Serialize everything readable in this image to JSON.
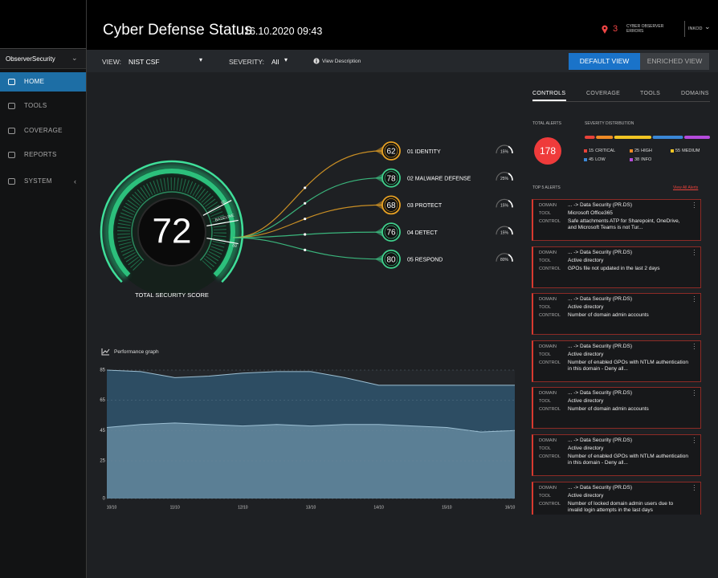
{
  "header": {
    "title": "Cyber Defense Status",
    "datetime": "16.10.2020 09:43",
    "errors_count": "3",
    "errors_label": "CYBER OBSERVER ERRORS",
    "user": "INKOD"
  },
  "sidebar": {
    "org": "ObserverSecurity",
    "nav": [
      "HOME",
      "TOOLS",
      "COVERAGE",
      "REPORTS",
      "SYSTEM"
    ]
  },
  "toolbar": {
    "view_label": "VIEW:",
    "view_value": "NIST CSF",
    "severity_label": "SEVERITY:",
    "severity_value": "All",
    "view_description": "View Description",
    "buttons": [
      "DEFAULT VIEW",
      "ENRICHED VIEW"
    ]
  },
  "gauge": {
    "score": "72",
    "label": "TOTAL SECURITY SCORE",
    "marks": [
      "65",
      "BASELINE",
      "80"
    ]
  },
  "functions": [
    {
      "score": "62",
      "name": "01 IDENTITY",
      "pct": "15%",
      "color": "#e8a224"
    },
    {
      "score": "78",
      "name": "02 MALWARE DEFENSE",
      "pct": "25%",
      "color": "#3fd08c"
    },
    {
      "score": "68",
      "name": "03 PROTECT",
      "pct": "15%",
      "color": "#e8a224"
    },
    {
      "score": "76",
      "name": "04 DETECT",
      "pct": "15%",
      "color": "#3fd08c"
    },
    {
      "score": "80",
      "name": "05 RESPOND",
      "pct": "80%",
      "color": "#3fd08c"
    }
  ],
  "tabs": [
    "CONTROLS",
    "COVERAGE",
    "TOOLS",
    "DOMAINS"
  ],
  "alerts": {
    "total_label": "TOTAL ALERTS",
    "total": "178",
    "distribution_label": "SEVERITY DISTRIBUTION",
    "severity": [
      {
        "count": 15,
        "name": "CRITICAL",
        "color": "#e8423a"
      },
      {
        "count": 25,
        "name": "HIGH",
        "color": "#ef8a25"
      },
      {
        "count": 55,
        "name": "MEDIUM",
        "color": "#f2c523"
      },
      {
        "count": 45,
        "name": "LOW",
        "color": "#3a87d6"
      },
      {
        "count": 38,
        "name": "INFO",
        "color": "#b54bdc"
      }
    ],
    "top_label": "TOP 5 ALERTS",
    "view_all": "View All Alerts",
    "field_labels": {
      "domain": "DOMAIN",
      "tool": "TOOL",
      "control": "CONTROL"
    },
    "cards": [
      {
        "domain": "... -> Data Security (PR.DS)",
        "tool": "Microsoft Office365",
        "control": "Safe attachments ATP for Sharepoint, OneDrive, and Microsoft Teams is not Tur..."
      },
      {
        "domain": "... -> Data Security (PR.DS)",
        "tool": "Active directory",
        "control": "GPOs file not updated in the last 2 days"
      },
      {
        "domain": "... -> Data Security (PR.DS)",
        "tool": "Active directory",
        "control": "Number of domain admin accounts"
      },
      {
        "domain": "... -> Data Security (PR.DS)",
        "tool": "Active directory",
        "control": "Number of enabled GPOs with NTLM authentication in this domain - Deny all..."
      },
      {
        "domain": "... -> Data Security (PR.DS)",
        "tool": "Active directory",
        "control": "Number of domain admin accounts"
      },
      {
        "domain": "... -> Data Security (PR.DS)",
        "tool": "Active directory",
        "control": "Number of enabled GPOs with NTLM authentication in this domain - Deny all..."
      },
      {
        "domain": "... -> Data Security (PR.DS)",
        "tool": "Active directory",
        "control": "Number of locked domain admin users due to invalid login attempts in the last days"
      }
    ]
  },
  "performance_graph": {
    "type": "area",
    "title": "Performance graph",
    "categories": [
      "10/10",
      null,
      "11/10",
      null,
      "12/10",
      null,
      "13/10",
      null,
      "14/10",
      null,
      "15/10",
      null,
      "16/10"
    ],
    "series": [
      {
        "color": "#2d4d63",
        "values": [
          85,
          84,
          80,
          81,
          83,
          84,
          84,
          80,
          75,
          75,
          75,
          75,
          75
        ]
      },
      {
        "color": "#5b7f95",
        "values": [
          47,
          49,
          50,
          49,
          48,
          49,
          48,
          49,
          49,
          48,
          47,
          44,
          45
        ]
      }
    ],
    "ylim": [
      0,
      85
    ],
    "yticks": [
      0,
      25,
      45,
      65,
      85
    ],
    "grid": true
  }
}
